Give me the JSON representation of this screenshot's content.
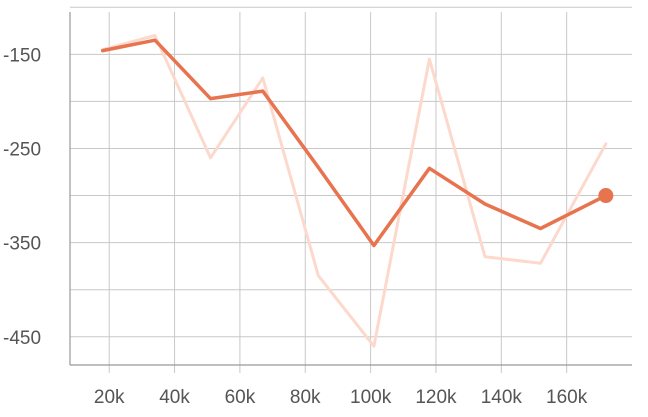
{
  "chart_data": {
    "type": "line",
    "title": "",
    "xlabel": "",
    "ylabel": "",
    "grid": true,
    "xlim": [
      8000,
      180000
    ],
    "ylim": [
      -480,
      -105
    ],
    "x_ticks": [
      20000,
      40000,
      60000,
      80000,
      100000,
      120000,
      140000,
      160000
    ],
    "x_tick_labels": [
      "20k",
      "40k",
      "60k",
      "80k",
      "100k",
      "120k",
      "140k",
      "160k"
    ],
    "y_ticks": [
      -150,
      -250,
      -350,
      -450
    ],
    "y_tick_labels": [
      "-150",
      "-250",
      "-350",
      "-450"
    ],
    "series": [
      {
        "role": "raw",
        "color": "#fcd9cc",
        "x": [
          18000,
          34000,
          51000,
          67000,
          84000,
          101000,
          118000,
          135000,
          152000,
          172000
        ],
        "values": [
          -145,
          -130,
          -260,
          -175,
          -385,
          -460,
          -155,
          -365,
          -372,
          -245
        ]
      },
      {
        "role": "smoothed",
        "color": "#e8734f",
        "x": [
          18000,
          34000,
          51000,
          67000,
          84000,
          101000,
          118000,
          135000,
          152000,
          172000
        ],
        "values": [
          -146,
          -135,
          -197,
          -189,
          -270,
          -353,
          -271,
          -309,
          -335,
          -300
        ]
      }
    ]
  }
}
